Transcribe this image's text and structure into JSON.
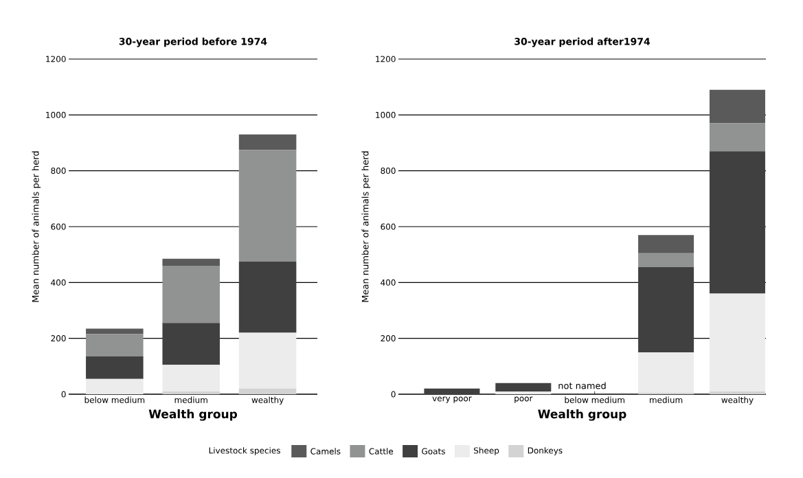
{
  "chart_data": [
    {
      "type": "bar",
      "stacked": true,
      "title": "30-year period before 1974",
      "xlabel": "Wealth group",
      "ylabel": "Mean number of animals per herd",
      "legend_title": "Livestock species",
      "legend": "bottom",
      "grid": "y",
      "categories": [
        "below medium",
        "medium",
        "wealthy"
      ],
      "series": [
        {
          "name": "Donkeys",
          "color": "#d3d3d3",
          "values": [
            0,
            10,
            20
          ]
        },
        {
          "name": "Sheep",
          "color": "#ececec",
          "values": [
            55,
            95,
            200
          ]
        },
        {
          "name": "Goats",
          "color": "#404040",
          "values": [
            80,
            150,
            255
          ]
        },
        {
          "name": "Cattle",
          "color": "#919392",
          "values": [
            80,
            205,
            400
          ]
        },
        {
          "name": "Camels",
          "color": "#5a5a5a",
          "values": [
            20,
            25,
            55
          ]
        }
      ],
      "ylim": [
        0,
        1200
      ],
      "yticks": [
        0,
        200,
        400,
        600,
        800,
        1000,
        1200
      ]
    },
    {
      "type": "bar",
      "stacked": true,
      "title": "30-year period after1974",
      "xlabel": "Wealth group",
      "ylabel": "Mean number of animals per herd",
      "grid": "y",
      "categories": [
        "very poor",
        "poor",
        "below medium",
        "medium",
        "wealthy"
      ],
      "series": [
        {
          "color": "#d3d3d3",
          "values": [
            0,
            0,
            null,
            5,
            10
          ]
        },
        {
          "color": "#ececec",
          "values": [
            0,
            10,
            null,
            145,
            350
          ]
        },
        {
          "color": "#404040",
          "values": [
            20,
            30,
            null,
            305,
            510
          ]
        },
        {
          "color": "#919392",
          "values": [
            0,
            0,
            null,
            50,
            100
          ]
        },
        {
          "color": "#5a5a5a",
          "values": [
            0,
            0,
            null,
            65,
            120
          ]
        }
      ],
      "annotations": [
        "not named"
      ],
      "ylim": [
        0,
        1200
      ],
      "yticks": [
        0,
        200,
        400,
        600,
        800,
        1000,
        1200
      ]
    }
  ]
}
